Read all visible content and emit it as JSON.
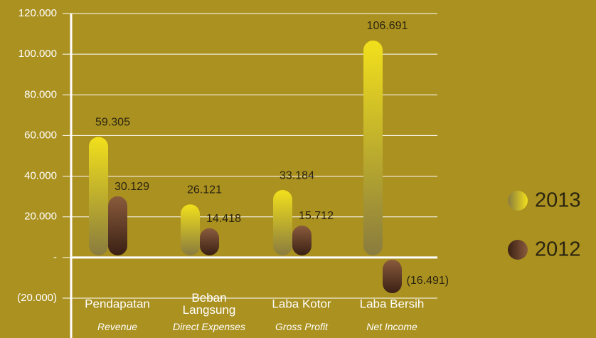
{
  "chart_data": {
    "type": "bar",
    "categories": [
      "Pendapatan",
      "Beban\nLangsung",
      "Laba Kotor",
      "Laba Bersih"
    ],
    "subtitles": [
      "Revenue",
      "Direct Expenses",
      "Gross Profit",
      "Net Income"
    ],
    "series": [
      {
        "name": "2013",
        "color": "#f2e01c",
        "values": [
          59305,
          26121,
          33184,
          106691
        ],
        "value_labels": [
          "59.305",
          "26.121",
          "33.184",
          "106.691"
        ]
      },
      {
        "name": "2012",
        "color": "#8a5b3c",
        "values": [
          30129,
          14418,
          15712,
          -16491
        ],
        "value_labels": [
          "30.129",
          "14.418",
          "15.712",
          "(16.491)"
        ]
      }
    ],
    "ylim": [
      -20000,
      120000
    ],
    "yticks": [
      {
        "value": -20000,
        "label": "(20.000)"
      },
      {
        "value": 0,
        "label": "-"
      },
      {
        "value": 20000,
        "label": "20.000"
      },
      {
        "value": 40000,
        "label": "40.000"
      },
      {
        "value": 60000,
        "label": "60.000"
      },
      {
        "value": 80000,
        "label": "80.000"
      },
      {
        "value": 100000,
        "label": "100.000"
      },
      {
        "value": 120000,
        "label": "120.000"
      }
    ],
    "grid": true,
    "legend": "right"
  }
}
